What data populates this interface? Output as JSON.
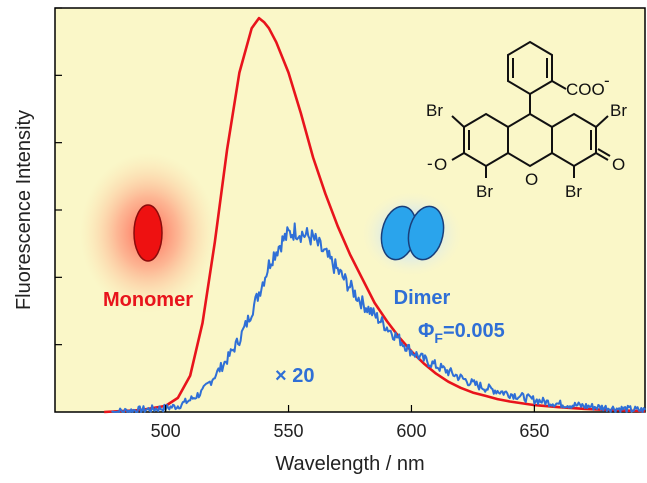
{
  "chart_data": {
    "type": "line",
    "title": "",
    "xlabel": "Wavelength / nm",
    "ylabel": "Fluorescence Intensity",
    "xlim": [
      455,
      695
    ],
    "ylim": [
      0,
      1.0
    ],
    "x_ticks": [
      500,
      550,
      600,
      650
    ],
    "y_ticks_count": 6,
    "grid": false,
    "background": "#faf7c8",
    "series": [
      {
        "name": "Monomer",
        "color": "#e8141c",
        "x": [
          475,
          490,
          500,
          505,
          510,
          515,
          520,
          525,
          530,
          535,
          538,
          540,
          542,
          545,
          550,
          555,
          560,
          565,
          570,
          575,
          580,
          585,
          590,
          595,
          600,
          605,
          610,
          615,
          620,
          625,
          630,
          635,
          640,
          650,
          660,
          670,
          680,
          690,
          695
        ],
        "y": [
          0.0,
          0.005,
          0.015,
          0.035,
          0.09,
          0.22,
          0.42,
          0.65,
          0.84,
          0.95,
          0.975,
          0.965,
          0.95,
          0.915,
          0.84,
          0.74,
          0.63,
          0.54,
          0.46,
          0.39,
          0.33,
          0.27,
          0.225,
          0.185,
          0.15,
          0.12,
          0.095,
          0.075,
          0.06,
          0.048,
          0.04,
          0.032,
          0.026,
          0.017,
          0.012,
          0.008,
          0.005,
          0.003,
          0.002
        ]
      },
      {
        "name": "Dimer",
        "color": "#2f6fd6",
        "x": [
          478,
          500,
          505,
          510,
          515,
          520,
          525,
          530,
          533,
          537,
          540,
          543,
          547,
          550,
          553,
          556,
          560,
          565,
          570,
          575,
          580,
          585,
          590,
          595,
          600,
          605,
          610,
          615,
          620,
          625,
          630,
          640,
          650,
          660,
          670,
          680,
          690,
          695
        ],
        "y": [
          0.0,
          0.01,
          0.015,
          0.03,
          0.05,
          0.09,
          0.13,
          0.18,
          0.22,
          0.28,
          0.33,
          0.38,
          0.42,
          0.44,
          0.45,
          0.44,
          0.43,
          0.39,
          0.35,
          0.31,
          0.27,
          0.24,
          0.21,
          0.18,
          0.15,
          0.13,
          0.115,
          0.1,
          0.085,
          0.07,
          0.06,
          0.045,
          0.03,
          0.02,
          0.015,
          0.01,
          0.006,
          0.004
        ]
      }
    ],
    "annotations": {
      "monomer_label": "Monomer",
      "dimer_label": "Dimer",
      "phi_symbol": "Φ",
      "phi_subscript": "F",
      "phi_value": "=0.005",
      "scale_factor": "× 20"
    },
    "structure": {
      "coo": "COO",
      "coo_charge": "-",
      "br": "Br",
      "o_minus": "O",
      "o_charge": "-",
      "ring_o": "O",
      "carbonyl_o": "O"
    }
  }
}
